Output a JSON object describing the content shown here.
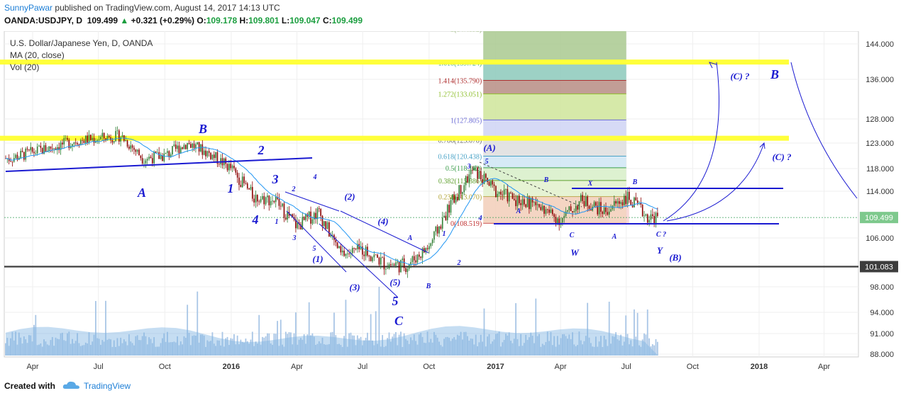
{
  "header": {
    "author": "SunnyPawar",
    "published_text": "published on TradingView.com, August 14, 2017 14:13 UTC",
    "symbol": "OANDA:USDJPY, D",
    "last": "109.499",
    "change_arrow": "▲",
    "change": "+0.321 (+0.29%)",
    "open_label": "O:",
    "open": "109.178",
    "high_label": "H:",
    "high": "109.801",
    "low_label": "L:",
    "low": "109.047",
    "close_label": "C:",
    "close": "109.499"
  },
  "legend": {
    "title": "U.S. Dollar/Japanese Yen, D, OANDA",
    "ma": "MA (20, close)",
    "vol": "Vol (20)"
  },
  "footer": {
    "created_with": "Created with",
    "brand": "TradingView",
    "brand_icon": "cloud-icon"
  },
  "colors": {
    "candle_up": "#2e7d32",
    "candle_down": "#8b0000",
    "ma": "#2196f3",
    "volume": "#a9c6e6",
    "volume_ma": "#7fb3e3",
    "annotation": "#1a1ad1",
    "highlight": "#ffff3a",
    "support": "#3d3d3d"
  },
  "chart_data": {
    "type": "candlestick",
    "x_axis_labels": [
      "Apr",
      "Jul",
      "Oct",
      "2016",
      "Apr",
      "Jul",
      "Oct",
      "2017",
      "Apr",
      "Jul",
      "Oct",
      "2018",
      "Apr"
    ],
    "y_ticks": [
      "144.000",
      "136.000",
      "128.000",
      "123.000",
      "118.000",
      "114.000",
      "109.499",
      "106.000",
      "101.083",
      "98.000",
      "94.000",
      "91.000",
      "88.000"
    ],
    "ylim": [
      88,
      148
    ],
    "price_path": [
      {
        "date": "2015-03",
        "close": 120
      },
      {
        "date": "2015-06",
        "close": 123.5
      },
      {
        "date": "2015-07",
        "close": 124
      },
      {
        "date": "2015-08",
        "close": 124.5
      },
      {
        "date": "2015-09",
        "close": 120
      },
      {
        "date": "2015-10",
        "close": 120.5
      },
      {
        "date": "2015-11",
        "close": 123
      },
      {
        "date": "2015-12",
        "close": 121
      },
      {
        "date": "2016-01",
        "close": 118
      },
      {
        "date": "2016-02",
        "close": 113
      },
      {
        "date": "2016-03",
        "close": 112.5
      },
      {
        "date": "2016-04",
        "close": 108
      },
      {
        "date": "2016-05",
        "close": 110.5
      },
      {
        "date": "2016-06",
        "close": 103
      },
      {
        "date": "2016-07",
        "close": 104
      },
      {
        "date": "2016-08",
        "close": 101.5
      },
      {
        "date": "2016-09",
        "close": 101.3
      },
      {
        "date": "2016-10",
        "close": 104.5
      },
      {
        "date": "2016-11",
        "close": 112
      },
      {
        "date": "2016-12",
        "close": 117.8
      },
      {
        "date": "2017-01",
        "close": 114
      },
      {
        "date": "2017-02",
        "close": 112.5
      },
      {
        "date": "2017-03",
        "close": 111.5
      },
      {
        "date": "2017-04",
        "close": 109
      },
      {
        "date": "2017-05",
        "close": 112.5
      },
      {
        "date": "2017-06",
        "close": 110.5
      },
      {
        "date": "2017-07",
        "close": 113
      },
      {
        "date": "2017-08",
        "close": 109.5
      }
    ],
    "highlight_levels": [
      139.9,
      124
    ],
    "support_level": 101.083,
    "last_price": 109.499,
    "fib_levels": [
      {
        "label": "2(147.892)",
        "value": 147.892
      },
      {
        "label": "1.618(139.724)",
        "value": 139.724
      },
      {
        "label": "1.414(135.790)",
        "value": 135.79
      },
      {
        "label": "1.272(133.051)",
        "value": 133.051
      },
      {
        "label": "1(127.805)",
        "value": 127.805
      },
      {
        "label": "0.786(123.678)",
        "value": 123.678
      },
      {
        "label": "0.618(120.438)",
        "value": 120.438
      },
      {
        "label": "0.5(118.162)",
        "value": 118.162
      },
      {
        "label": "0.382(115.886)",
        "value": 115.886
      },
      {
        "label": "0.236(113.070)",
        "value": 113.07
      },
      {
        "label": "0(108.519)",
        "value": 108.519
      }
    ],
    "annotations_large": [
      "A",
      "B",
      "1",
      "2",
      "3",
      "4",
      "5",
      "C",
      "B"
    ],
    "annotations_medium": [
      "(1)",
      "(2)",
      "(3)",
      "(4)",
      "(5)",
      "(A)",
      "(B)",
      "(C) ?",
      "(C) ?",
      "W",
      "Y"
    ],
    "annotations_small": [
      "1",
      "2",
      "3",
      "4",
      "5",
      "A",
      "B",
      "1",
      "2",
      "3",
      "4",
      "5",
      "A",
      "B",
      "C",
      "X",
      "A",
      "B",
      "C ?"
    ]
  }
}
